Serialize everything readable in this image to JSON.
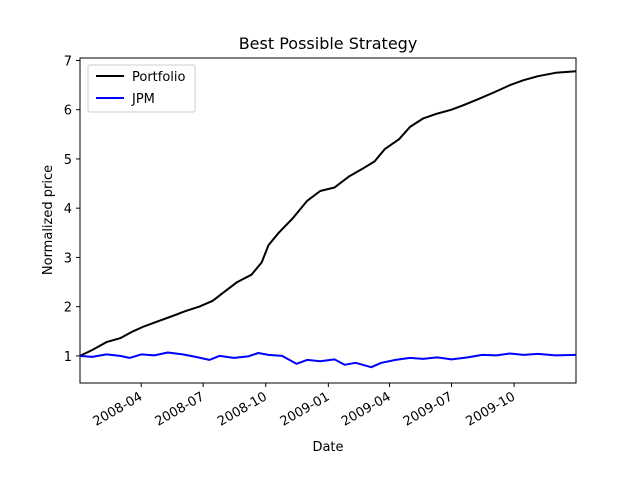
{
  "chart_data": {
    "type": "line",
    "title": "Best Possible Strategy",
    "xlabel": "Date",
    "ylabel": "Normalized price",
    "xlim": [
      "2008-01-02",
      "2009-12-31"
    ],
    "ylim": [
      0.45,
      7.05
    ],
    "x_ticks": [
      "2008-04",
      "2008-07",
      "2008-10",
      "2009-01",
      "2009-04",
      "2009-07",
      "2009-10"
    ],
    "y_ticks": [
      1,
      2,
      3,
      4,
      5,
      6,
      7
    ],
    "grid": false,
    "legend_position": "upper left",
    "series": [
      {
        "name": "Portfolio",
        "color": "#000000",
        "points": [
          [
            "2008-01-02",
            1.0
          ],
          [
            "2008-01-20",
            1.12
          ],
          [
            "2008-02-10",
            1.28
          ],
          [
            "2008-03-01",
            1.36
          ],
          [
            "2008-03-20",
            1.5
          ],
          [
            "2008-04-05",
            1.6
          ],
          [
            "2008-04-25",
            1.7
          ],
          [
            "2008-05-15",
            1.8
          ],
          [
            "2008-06-05",
            1.91
          ],
          [
            "2008-06-25",
            2.0
          ],
          [
            "2008-07-15",
            2.12
          ],
          [
            "2008-08-01",
            2.3
          ],
          [
            "2008-08-20",
            2.5
          ],
          [
            "2008-09-10",
            2.65
          ],
          [
            "2008-09-25",
            2.9
          ],
          [
            "2008-10-05",
            3.25
          ],
          [
            "2008-10-20",
            3.5
          ],
          [
            "2008-11-10",
            3.8
          ],
          [
            "2008-12-01",
            4.15
          ],
          [
            "2008-12-20",
            4.35
          ],
          [
            "2009-01-10",
            4.42
          ],
          [
            "2009-02-01",
            4.65
          ],
          [
            "2009-02-20",
            4.8
          ],
          [
            "2009-03-10",
            4.95
          ],
          [
            "2009-03-25",
            5.2
          ],
          [
            "2009-04-15",
            5.4
          ],
          [
            "2009-05-01",
            5.65
          ],
          [
            "2009-05-20",
            5.82
          ],
          [
            "2009-06-10",
            5.92
          ],
          [
            "2009-07-01",
            6.0
          ],
          [
            "2009-07-20",
            6.1
          ],
          [
            "2009-08-10",
            6.22
          ],
          [
            "2009-09-01",
            6.35
          ],
          [
            "2009-09-25",
            6.5
          ],
          [
            "2009-10-15",
            6.6
          ],
          [
            "2009-11-05",
            6.68
          ],
          [
            "2009-12-01",
            6.75
          ],
          [
            "2009-12-31",
            6.78
          ]
        ]
      },
      {
        "name": "JPM",
        "color": "#0000ff",
        "points": [
          [
            "2008-01-02",
            1.0
          ],
          [
            "2008-01-20",
            0.98
          ],
          [
            "2008-02-10",
            1.03
          ],
          [
            "2008-03-01",
            1.0
          ],
          [
            "2008-03-15",
            0.96
          ],
          [
            "2008-04-01",
            1.03
          ],
          [
            "2008-04-20",
            1.01
          ],
          [
            "2008-05-10",
            1.07
          ],
          [
            "2008-06-01",
            1.03
          ],
          [
            "2008-06-20",
            0.98
          ],
          [
            "2008-07-10",
            0.92
          ],
          [
            "2008-07-25",
            1.0
          ],
          [
            "2008-08-15",
            0.96
          ],
          [
            "2008-09-05",
            0.99
          ],
          [
            "2008-09-20",
            1.06
          ],
          [
            "2008-10-05",
            1.02
          ],
          [
            "2008-10-25",
            1.0
          ],
          [
            "2008-11-15",
            0.84
          ],
          [
            "2008-12-01",
            0.92
          ],
          [
            "2008-12-20",
            0.89
          ],
          [
            "2009-01-10",
            0.93
          ],
          [
            "2009-01-25",
            0.82
          ],
          [
            "2009-02-10",
            0.86
          ],
          [
            "2009-03-05",
            0.77
          ],
          [
            "2009-03-20",
            0.86
          ],
          [
            "2009-04-10",
            0.92
          ],
          [
            "2009-05-01",
            0.96
          ],
          [
            "2009-05-20",
            0.94
          ],
          [
            "2009-06-10",
            0.97
          ],
          [
            "2009-07-01",
            0.93
          ],
          [
            "2009-07-25",
            0.97
          ],
          [
            "2009-08-15",
            1.02
          ],
          [
            "2009-09-05",
            1.01
          ],
          [
            "2009-09-25",
            1.05
          ],
          [
            "2009-10-15",
            1.02
          ],
          [
            "2009-11-05",
            1.04
          ],
          [
            "2009-12-01",
            1.01
          ],
          [
            "2009-12-31",
            1.02
          ]
        ]
      }
    ]
  }
}
